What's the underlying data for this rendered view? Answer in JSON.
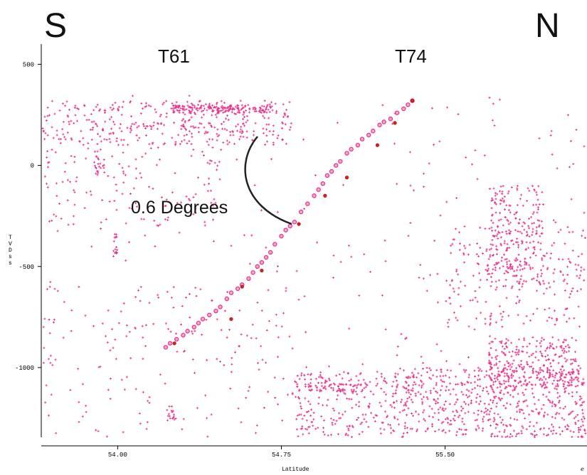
{
  "chart_data": {
    "type": "scatter",
    "title": "",
    "xlabel": "Latitude",
    "ylabel": "TVDss",
    "xlim": [
      53.65,
      56.15
    ],
    "ylim": [
      -1345,
      600
    ],
    "xticks": [
      54.0,
      54.75,
      55.5
    ],
    "xtick_labels": [
      "54.00",
      "54.75",
      "55.50"
    ],
    "yticks": [
      500,
      0,
      -500,
      -1000
    ],
    "ytick_labels": [
      "500",
      "0",
      "-500",
      "-1000"
    ],
    "grid": false,
    "legend": "none",
    "annotations": {
      "left_direction": "S",
      "right_direction": "N",
      "well_a": "T61",
      "well_b": "T74",
      "angle": "0.6 Degrees"
    },
    "series": [
      {
        "color": "#e8318a",
        "marker": "plus",
        "clusters": [
          {
            "x": [
              53.65,
              54.8
            ],
            "y": [
              100,
              320
            ],
            "n": 360
          },
          {
            "x": [
              54.25,
              54.7
            ],
            "y": [
              260,
              300
            ],
            "n": 150
          },
          {
            "x": [
              53.65,
              54.5
            ],
            "y": [
              -300,
              100
            ],
            "n": 120
          },
          {
            "x": [
              53.65,
              56.15
            ],
            "y": [
              -1000,
              350
            ],
            "n": 230
          },
          {
            "x": [
              55.25,
              56.15
            ],
            "y": [
              -1345,
              -1000
            ],
            "n": 650
          },
          {
            "x": [
              54.8,
              55.25
            ],
            "y": [
              -1345,
              -1020
            ],
            "n": 200
          },
          {
            "x": [
              55.7,
              55.95
            ],
            "y": [
              -600,
              -100
            ],
            "n": 230
          },
          {
            "x": [
              55.7,
              56.1
            ],
            "y": [
              -1100,
              -850
            ],
            "n": 270
          },
          {
            "x": [
              55.5,
              56.15
            ],
            "y": [
              -800,
              -300
            ],
            "n": 220
          },
          {
            "x": [
              53.65,
              54.8
            ],
            "y": [
              -1345,
              -600
            ],
            "n": 150
          },
          {
            "x": [
              54.82,
              55.15
            ],
            "y": [
              -1120,
              -1080
            ],
            "n": 60
          },
          {
            "x": [
              53.9,
              53.94
            ],
            "y": [
              -50,
              80
            ],
            "n": 20
          },
          {
            "x": [
              53.98,
              54.0
            ],
            "y": [
              -450,
              -340
            ],
            "n": 16
          },
          {
            "x": [
              54.22,
              54.26
            ],
            "y": [
              -1260,
              -1190
            ],
            "n": 14
          },
          {
            "x": [
              54.29,
              54.31
            ],
            "y": [
              180,
              230
            ],
            "n": 10
          }
        ]
      },
      {
        "color": "#e8318a",
        "marker": "circle",
        "x": [
          54.22,
          54.24,
          54.27,
          54.3,
          54.32,
          54.35,
          54.37,
          54.39,
          54.42,
          54.45,
          54.47,
          54.5,
          54.52,
          54.55,
          54.57,
          54.6,
          54.62,
          54.64,
          54.66,
          54.68,
          54.7,
          54.72,
          54.75,
          54.77,
          54.79,
          54.81,
          54.84,
          54.87,
          54.9,
          54.92,
          54.94,
          54.96,
          54.98,
          55.0,
          55.02,
          55.05,
          55.07,
          55.1,
          55.12,
          55.15,
          55.17,
          55.2,
          55.22,
          55.25,
          55.28,
          55.31,
          55.33,
          55.35
        ],
        "y": [
          -900,
          -880,
          -860,
          -840,
          -820,
          -800,
          -780,
          -760,
          -740,
          -720,
          -700,
          -660,
          -630,
          -610,
          -590,
          -560,
          -530,
          -500,
          -480,
          -455,
          -430,
          -390,
          -350,
          -320,
          -300,
          -280,
          -230,
          -190,
          -150,
          -120,
          -90,
          -50,
          -30,
          0,
          20,
          60,
          80,
          100,
          130,
          150,
          170,
          200,
          215,
          230,
          260,
          280,
          300,
          320
        ]
      },
      {
        "color": "#e02020",
        "marker": "circle",
        "x": [
          54.26,
          54.52,
          54.57,
          54.66,
          54.83,
          54.95,
          55.05,
          55.19,
          55.27,
          55.35
        ],
        "y": [
          -880,
          -760,
          -600,
          -520,
          -290,
          -150,
          -60,
          100,
          210,
          320
        ]
      }
    ]
  }
}
